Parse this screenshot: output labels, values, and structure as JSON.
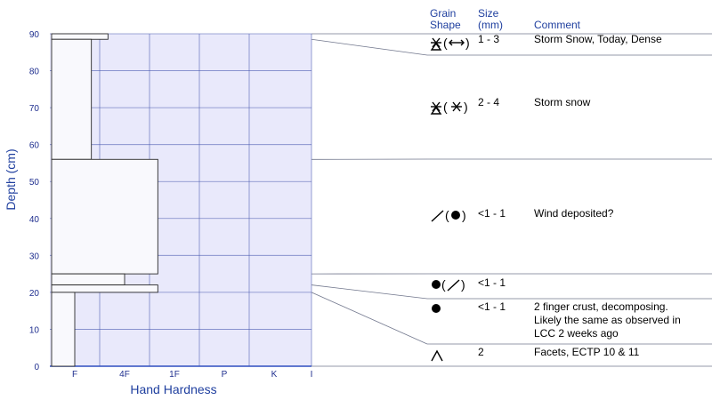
{
  "colors": {
    "plot_bg": "#e9e9fb",
    "grid": "#4a5ab0",
    "bar_fill": "#f9f9fd",
    "bar_stroke": "#2a2a2a",
    "axis_text": "#1f2f8f",
    "table_line": "#70768c"
  },
  "chart_data": {
    "type": "snow-profile",
    "xlabel": "Hand Hardness",
    "ylabel": "Depth (cm)",
    "ylim": [
      0,
      90
    ],
    "y_ticks": [
      0,
      10,
      20,
      30,
      40,
      50,
      60,
      70,
      80,
      90
    ],
    "x_ticks": [
      "F",
      "4F",
      "1F",
      "P",
      "K",
      "I"
    ],
    "layers": [
      {
        "top": 90,
        "bottom": 88.5,
        "hardness": "4F-"
      },
      {
        "top": 88.5,
        "bottom": 56,
        "hardness": "F+"
      },
      {
        "top": 56,
        "bottom": 25,
        "hardness": "1F-"
      },
      {
        "top": 25,
        "bottom": 22,
        "hardness": "4F"
      },
      {
        "top": 22,
        "bottom": 20,
        "hardness": "1F-"
      },
      {
        "top": 20,
        "bottom": 0,
        "hardness": "F"
      }
    ]
  },
  "table": {
    "headers": {
      "grain_shape": [
        "Grain",
        "Shape"
      ],
      "size": [
        "Size",
        "(mm)"
      ],
      "comment": "Comment"
    },
    "rows": [
      {
        "grain_shape": "storm-snow-decomposing",
        "size": "1 - 3",
        "comment_lines": [
          "Storm Snow, Today, Dense"
        ]
      },
      {
        "grain_shape": "storm-snow-precip",
        "size": "2 - 4",
        "comment_lines": [
          "Storm snow"
        ]
      },
      {
        "grain_shape": "wind-packed-rounds",
        "size": "<1 - 1",
        "comment_lines": [
          "Wind deposited?"
        ]
      },
      {
        "grain_shape": "rounds-wind-packed",
        "size": "<1 - 1",
        "comment_lines": []
      },
      {
        "grain_shape": "rounds",
        "size": "<1 - 1",
        "comment_lines": [
          "2 finger crust, decomposing.",
          "Likely the same as observed in",
          "LCC 2 weeks ago"
        ]
      },
      {
        "grain_shape": "depth-hoar",
        "size": "2",
        "comment_lines": [
          "Facets, ECTP 10 & 11"
        ]
      }
    ]
  }
}
